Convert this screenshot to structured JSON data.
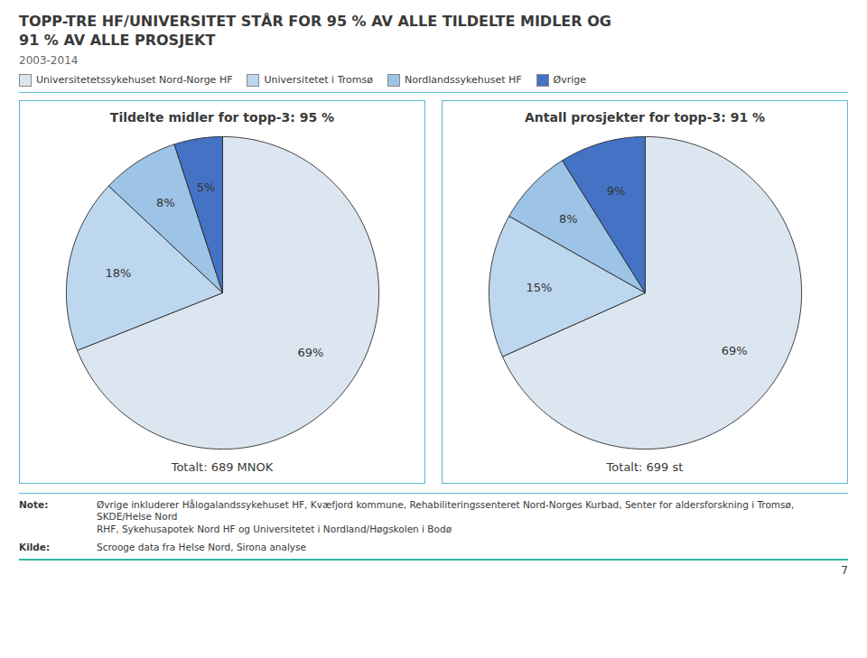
{
  "title": "TOPP-TRE HF/UNIVERSITET STÅR FOR 95 % AV ALLE TILDELTE MIDLER OG\n91 % AV ALLE PROSJEKT",
  "subtitle": "2003-2014",
  "chart_data": [
    {
      "type": "pie",
      "title": "Tildelte midler for topp-3: 95 %",
      "categories": [
        "Universitetetssykehuset Nord-Norge HF",
        "Universitetet i Tromsø",
        "Nordlandssykehuset HF",
        "Øvrige"
      ],
      "values": [
        69,
        18,
        8,
        5
      ],
      "value_labels": [
        "69%",
        "18%",
        "8%",
        "5%"
      ],
      "colors": [
        "#dce6f1",
        "#bdd7ee",
        "#9dc3e6",
        "#4472c4"
      ],
      "data_labels": true,
      "caption": "Totalt: 689 MNOK"
    },
    {
      "type": "pie",
      "title": "Antall prosjekter for topp-3: 91 %",
      "categories": [
        "Universitetetssykehuset Nord-Norge HF",
        "Universitetet i Tromsø",
        "Nordlandssykehuset HF",
        "Øvrige"
      ],
      "values": [
        69,
        15,
        8,
        9
      ],
      "value_labels": [
        "69%",
        "15%",
        "8%",
        "9%"
      ],
      "colors": [
        "#dce6f1",
        "#bdd7ee",
        "#9dc3e6",
        "#4472c4"
      ],
      "data_labels": true,
      "caption": "Totalt: 699 st"
    }
  ],
  "notes": [
    {
      "label": "Note:",
      "text": "Øvrige inkluderer Hålogalandssykehuset HF, Kvæfjord kommune, Rehabiliteringssenteret Nord-Norges Kurbad, Senter for aldersforskning i Tromsø, SKDE/Helse Nord\nRHF, Sykehusapotek Nord HF og Universitetet i Nordland/Høgskolen i Bodø"
    },
    {
      "label": "Kilde:",
      "text": "Scrooge data fra Helse Nord, Sirona analyse"
    }
  ],
  "page_number": "7"
}
